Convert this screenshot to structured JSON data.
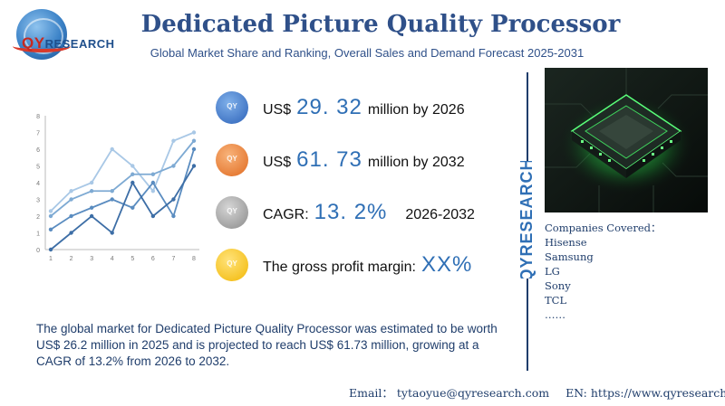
{
  "logo": {
    "brand_main": "QY",
    "brand_rest": "RESEARCH"
  },
  "header": {
    "title": "Dedicated Picture Quality Processor",
    "subtitle": "Global Market Share and Ranking, Overall Sales and Demand Forecast 2025-2031"
  },
  "stats": [
    {
      "prefix": "US$",
      "value": "29. 32",
      "suffix": "million by 2026",
      "badge_color": "#2d62b8"
    },
    {
      "prefix": "US$",
      "value": "61. 73",
      "suffix": "million by 2032",
      "badge_color": "#e06a20"
    },
    {
      "prefix": "CAGR:",
      "value": "13. 2%",
      "suffix": "2026-2032",
      "badge_color": "#8a8a8a"
    },
    {
      "prefix": "The gross profit margin:",
      "value": "XX%",
      "suffix": "",
      "badge_color": "#f2b705"
    }
  ],
  "brand_vertical": "QYRESEARCH",
  "companies": {
    "heading": "Companies Covered：",
    "items": [
      "Hisense",
      "Samsung",
      "LG",
      "Sony",
      "TCL",
      "……"
    ]
  },
  "description": "The global market for Dedicated Picture Quality Processor was estimated to be worth US$ 26.2 million in 2025 and is projected to reach US$ 61.73 million, growing at a CAGR of 13.2% from 2026 to 2032.",
  "footer": {
    "email": "Email：  tytaoyue@qyresearch.com",
    "website": "EN: https://www.qyresearch.com"
  },
  "chart_data": {
    "type": "line",
    "x": [
      1,
      2,
      3,
      4,
      5,
      6,
      7,
      8
    ],
    "ylim": [
      0,
      8
    ],
    "yticks": [
      0,
      1,
      2,
      3,
      4,
      5,
      6,
      7,
      8
    ],
    "grid": false,
    "series": [
      {
        "values": [
          2.3,
          3.5,
          4.0,
          6.0,
          5.0,
          3.5,
          6.5,
          7.0
        ],
        "color": "#a9c8e6"
      },
      {
        "values": [
          2.0,
          3.0,
          3.5,
          3.5,
          4.5,
          4.5,
          5.0,
          6.5
        ],
        "color": "#7eaad3"
      },
      {
        "values": [
          1.2,
          2.0,
          2.5,
          3.0,
          2.5,
          4.0,
          2.0,
          6.0
        ],
        "color": "#5a8cc0"
      },
      {
        "values": [
          0.0,
          1.0,
          2.0,
          1.0,
          4.0,
          2.0,
          3.0,
          5.0
        ],
        "color": "#3d6ea6"
      }
    ]
  }
}
